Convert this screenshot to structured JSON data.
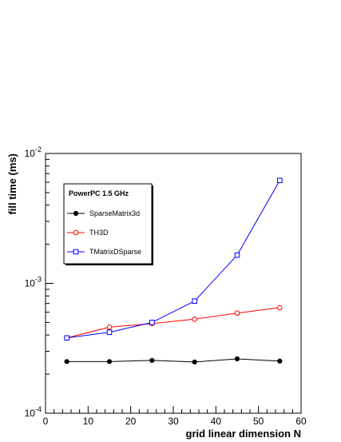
{
  "chart_data": {
    "type": "line",
    "title": "",
    "xlabel": "grid linear dimension N",
    "ylabel": "fill time (ms)",
    "xlim": [
      0,
      60
    ],
    "ylim": [
      0.0001,
      0.01
    ],
    "yscale": "log",
    "grid": false,
    "x_ticks": [
      0,
      10,
      20,
      30,
      40,
      50,
      60
    ],
    "y_ticks": [
      {
        "value": 0.0001,
        "base": "10",
        "exp": "-4"
      },
      {
        "value": 0.001,
        "base": "10",
        "exp": "-3"
      },
      {
        "value": 0.01,
        "base": "10",
        "exp": "-2"
      }
    ],
    "legend": {
      "title": "PowerPC 1.5 GHz",
      "placement": "top-left"
    },
    "x": [
      5,
      15,
      25,
      35,
      45,
      55
    ],
    "series": [
      {
        "name": "SparseMatrix3d",
        "color": "#000000",
        "marker": "filled-circle",
        "values": [
          0.00025,
          0.00025,
          0.000255,
          0.000248,
          0.000262,
          0.000252
        ]
      },
      {
        "name": "TH3D",
        "color": "#ff0000",
        "marker": "open-circle",
        "values": [
          0.00038,
          0.00046,
          0.00049,
          0.00053,
          0.00059,
          0.00065
        ]
      },
      {
        "name": "TMatrixDSparse",
        "color": "#0000ff",
        "marker": "open-square",
        "values": [
          0.00038,
          0.00042,
          0.0005,
          0.00073,
          0.00165,
          0.0062
        ]
      }
    ]
  }
}
